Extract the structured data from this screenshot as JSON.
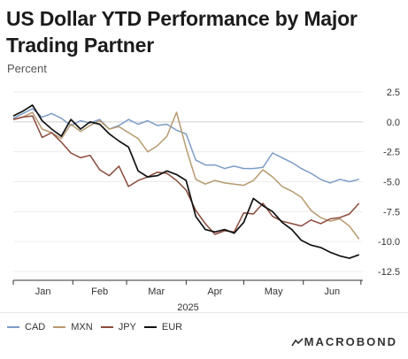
{
  "title": "US Dollar YTD Performance by Major Trading Partner",
  "subtitle": "Percent",
  "brand": "MACROBOND",
  "chart_data": {
    "type": "line",
    "title": "US Dollar YTD Performance by Major Trading Partner",
    "ylabel": "Percent",
    "xlabel": "2025",
    "x_months": [
      "Jan",
      "Feb",
      "Mar",
      "Apr",
      "May",
      "Jun"
    ],
    "ylim": [
      -12.5,
      2.5
    ],
    "yticks": [
      2.5,
      0.0,
      -2.5,
      -5.0,
      -7.5,
      -10.0,
      -12.5
    ],
    "ytick_labels": [
      "2.5",
      "0.0",
      "-2.5",
      "-5.0",
      "-7.5",
      "-10.0",
      "-12.5"
    ],
    "grid": true,
    "legend_position": "bottom-left",
    "x": [
      "2025-01-01",
      "2025-01-06",
      "2025-01-11",
      "2025-01-16",
      "2025-01-21",
      "2025-01-26",
      "2025-01-31",
      "2025-02-05",
      "2025-02-10",
      "2025-02-15",
      "2025-02-20",
      "2025-02-25",
      "2025-03-02",
      "2025-03-07",
      "2025-03-12",
      "2025-03-17",
      "2025-03-22",
      "2025-03-27",
      "2025-04-01",
      "2025-04-06",
      "2025-04-11",
      "2025-04-16",
      "2025-04-21",
      "2025-04-26",
      "2025-05-01",
      "2025-05-06",
      "2025-05-11",
      "2025-05-16",
      "2025-05-21",
      "2025-05-26",
      "2025-05-31",
      "2025-06-05",
      "2025-06-10",
      "2025-06-15",
      "2025-06-20",
      "2025-06-25",
      "2025-06-30"
    ],
    "series": [
      {
        "name": "CAD",
        "color": "#7b9cc8",
        "values": [
          0.3,
          0.7,
          1.1,
          0.4,
          0.7,
          0.3,
          -0.3,
          0.1,
          -0.1,
          0.2,
          -0.6,
          -0.3,
          0.2,
          -0.2,
          0.1,
          -0.3,
          -0.2,
          -0.7,
          -1.0,
          -3.2,
          -3.6,
          -3.6,
          -3.9,
          -3.7,
          -3.9,
          -3.9,
          -3.8,
          -2.6,
          -3.0,
          -3.4,
          -3.9,
          -4.3,
          -4.8,
          -5.1,
          -4.8,
          -5.0,
          -4.8
        ]
      },
      {
        "name": "MXN",
        "color": "#b79a6f",
        "values": [
          0.2,
          0.4,
          0.8,
          -0.6,
          -0.9,
          -1.4,
          -0.2,
          -0.8,
          -0.3,
          0.1,
          -0.6,
          -0.4,
          -0.9,
          -1.4,
          -2.5,
          -2.0,
          -1.2,
          0.8,
          -2.2,
          -4.8,
          -5.2,
          -4.9,
          -5.1,
          -5.2,
          -5.3,
          -4.9,
          -4.0,
          -4.6,
          -5.4,
          -5.8,
          -6.3,
          -7.4,
          -8.0,
          -8.3,
          -8.1,
          -8.7,
          -9.8
        ]
      },
      {
        "name": "JPY",
        "color": "#8b4a3b",
        "values": [
          0.2,
          0.4,
          0.5,
          -1.3,
          -0.9,
          -1.7,
          -2.6,
          -3.0,
          -2.8,
          -4.0,
          -4.5,
          -3.7,
          -5.4,
          -4.9,
          -4.6,
          -4.2,
          -4.3,
          -4.9,
          -5.7,
          -7.4,
          -8.5,
          -9.4,
          -9.1,
          -9.2,
          -7.6,
          -7.7,
          -6.8,
          -7.9,
          -8.3,
          -8.5,
          -8.7,
          -8.2,
          -8.5,
          -8.1,
          -8.0,
          -7.7,
          -6.8
        ]
      },
      {
        "name": "EUR",
        "color": "#111111",
        "values": [
          0.5,
          0.9,
          1.4,
          0.1,
          -0.6,
          -1.2,
          0.2,
          -0.6,
          0.0,
          -0.2,
          -1.0,
          -1.6,
          -2.1,
          -4.1,
          -4.6,
          -4.5,
          -4.1,
          -4.4,
          -4.9,
          -7.9,
          -9.0,
          -9.2,
          -9.0,
          -9.3,
          -8.4,
          -6.4,
          -7.0,
          -7.5,
          -8.4,
          -9.0,
          -9.9,
          -10.3,
          -10.5,
          -10.9,
          -11.2,
          -11.4,
          -11.1
        ]
      }
    ]
  }
}
